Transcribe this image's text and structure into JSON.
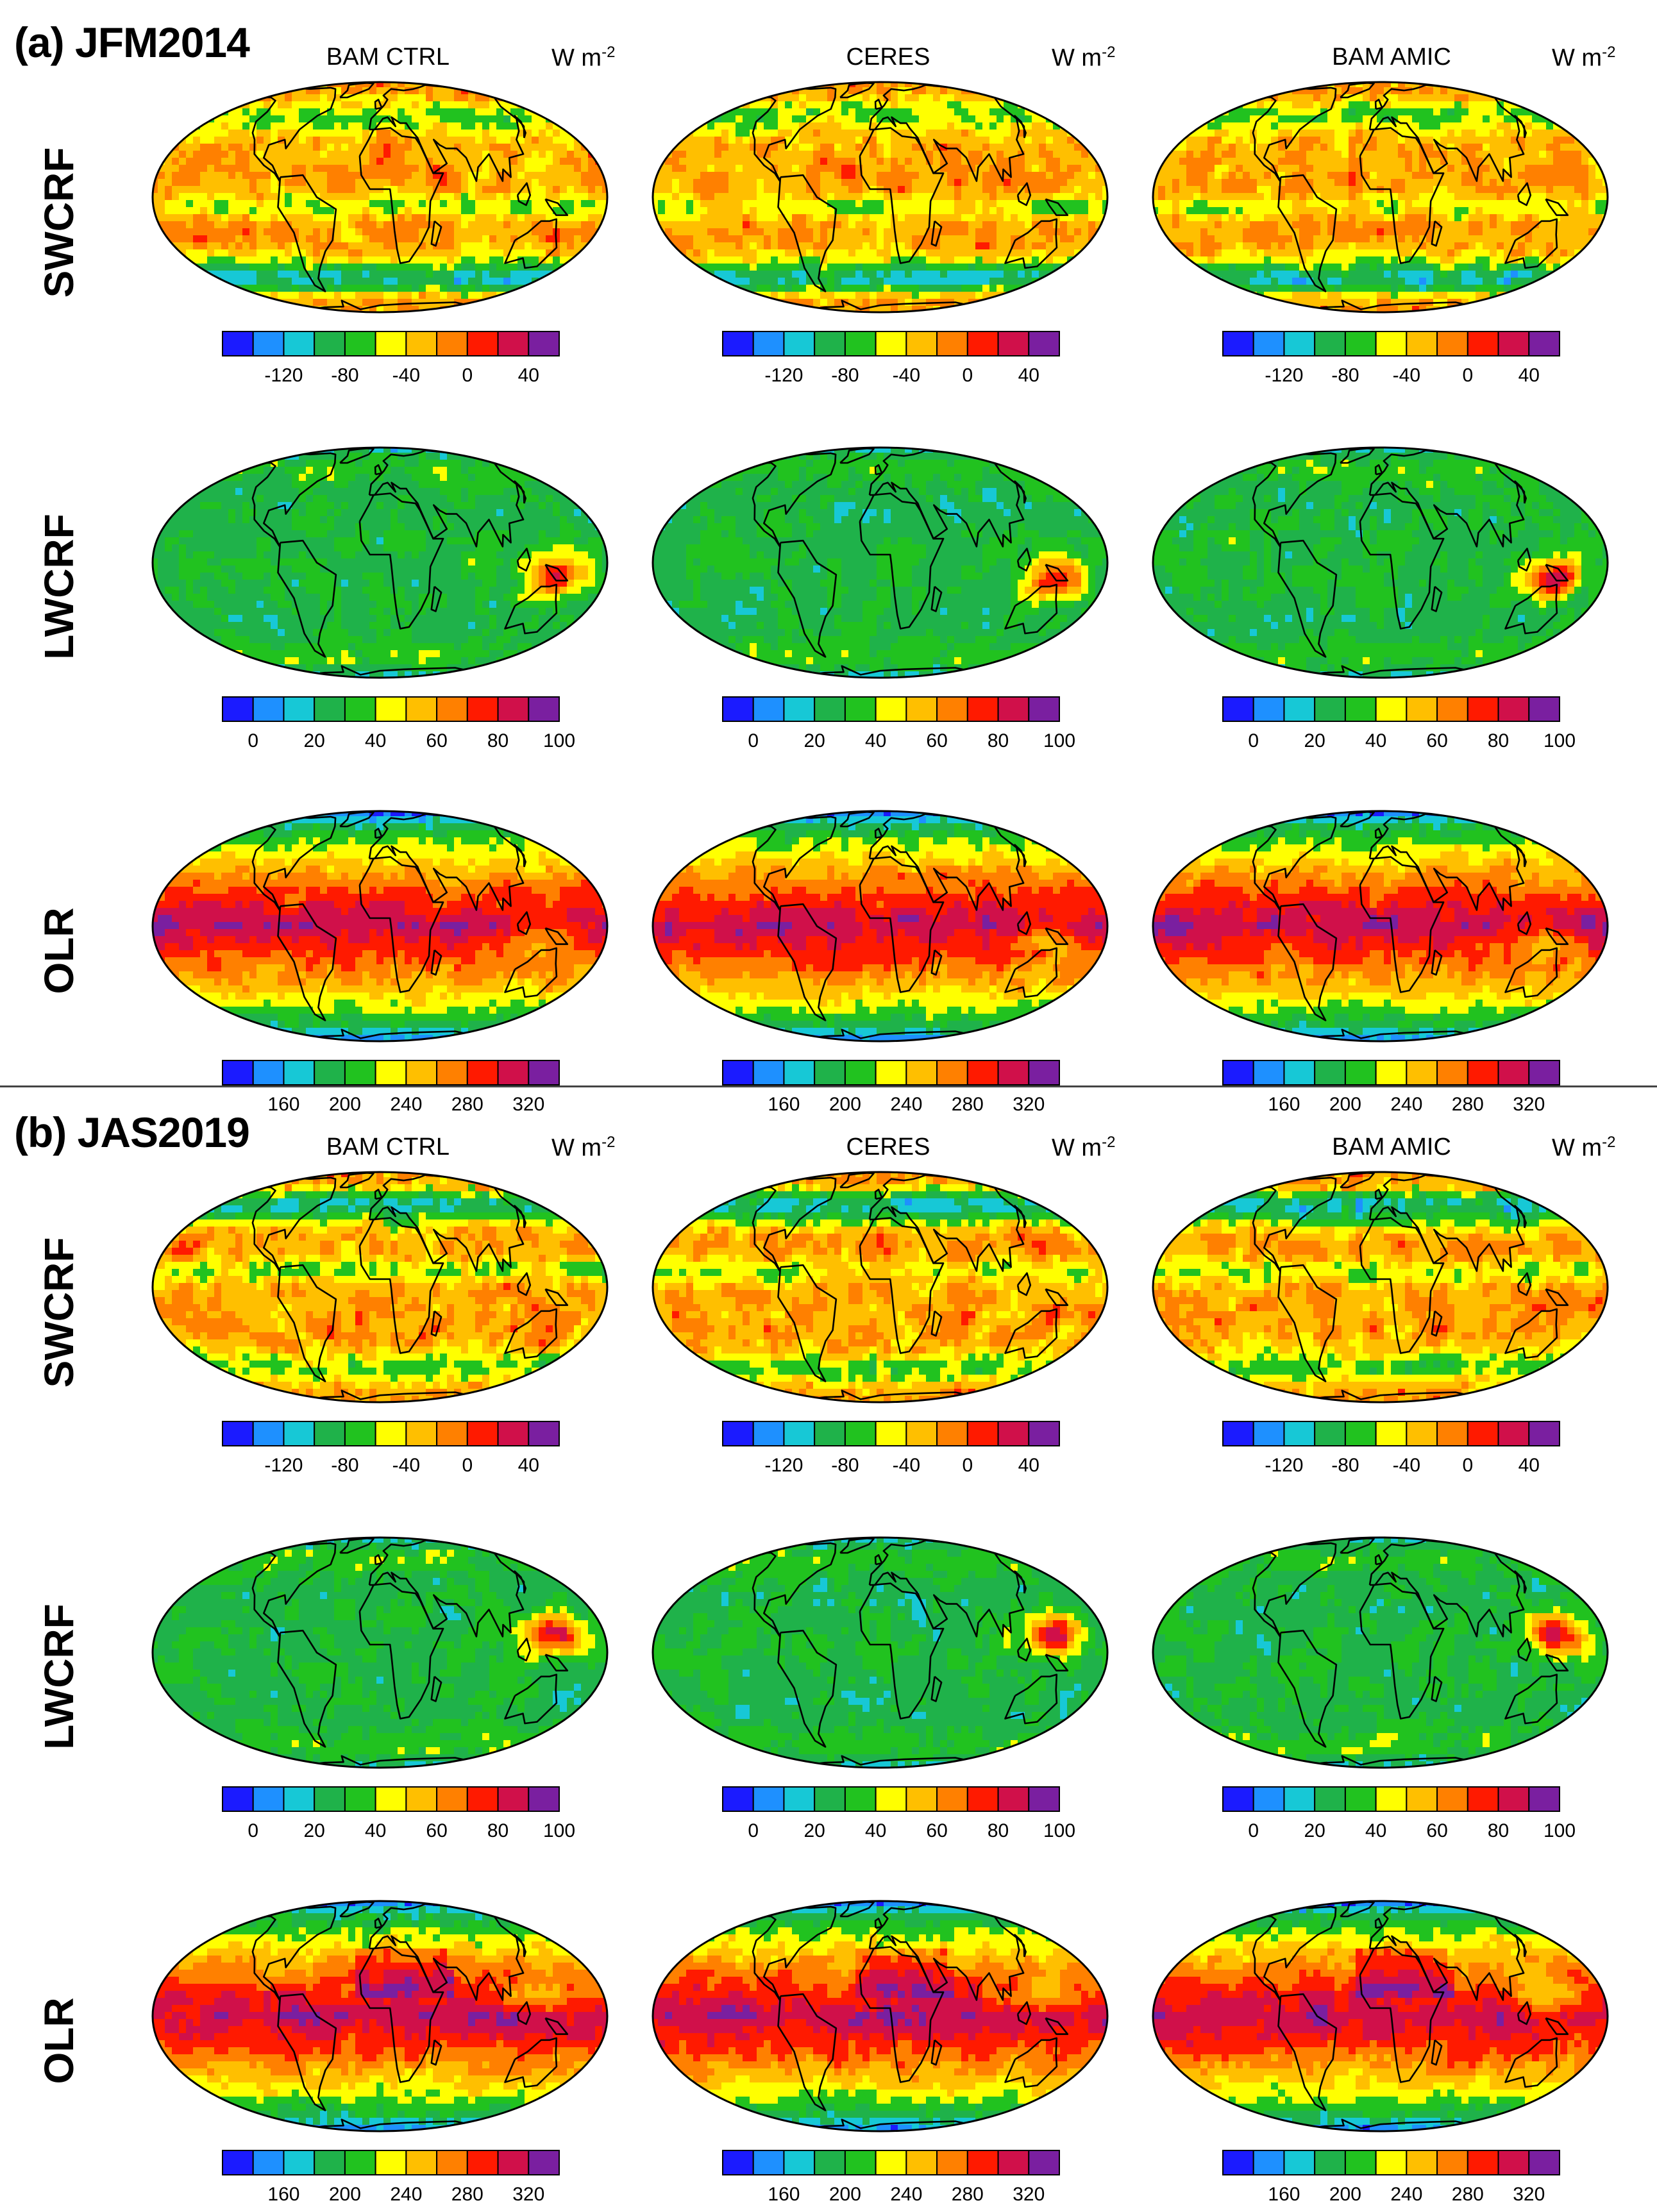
{
  "units_label": "W m",
  "units_exp": "-2",
  "columns": [
    "BAM CTRL",
    "CERES",
    "BAM AMIC"
  ],
  "colors": [
    "#1b1bff",
    "#1e90ff",
    "#17c8d6",
    "#1fb24a",
    "#21c21f",
    "#ffff00",
    "#ffbf00",
    "#ff8000",
    "#ff1a00",
    "#d0104a",
    "#7a1fa0"
  ],
  "panels": [
    {
      "title": "(a) JFM2014",
      "rows": [
        {
          "name": "SWCRF",
          "ticks": [
            "-120",
            "-80",
            "-40",
            "0",
            "40"
          ],
          "scheme": "sw"
        },
        {
          "name": "LWCRF",
          "ticks": [
            "0",
            "20",
            "40",
            "60",
            "80",
            "100"
          ],
          "scheme": "lw"
        },
        {
          "name": "OLR",
          "ticks": [
            "160",
            "200",
            "240",
            "280",
            "320"
          ],
          "scheme": "olr"
        }
      ]
    },
    {
      "title": "(b) JAS2019",
      "rows": [
        {
          "name": "SWCRF",
          "ticks": [
            "-120",
            "-80",
            "-40",
            "0",
            "40"
          ],
          "scheme": "sw"
        },
        {
          "name": "LWCRF",
          "ticks": [
            "0",
            "20",
            "40",
            "60",
            "80",
            "100"
          ],
          "scheme": "lw"
        },
        {
          "name": "OLR",
          "ticks": [
            "160",
            "200",
            "240",
            "280",
            "320"
          ],
          "scheme": "olr"
        }
      ]
    }
  ]
}
